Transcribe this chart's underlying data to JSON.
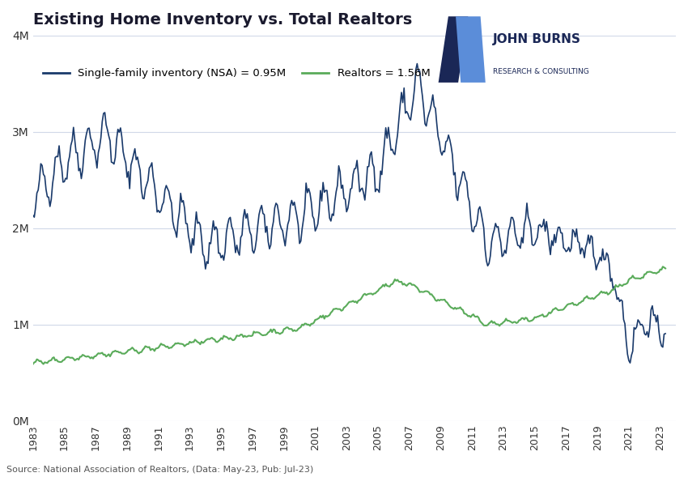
{
  "title": "Existing Home Inventory vs. Total Realtors",
  "source_text": "Source: National Association of Realtors, (Data: May-23, Pub: Jul-23)",
  "legend_inventory": "Single-family inventory (NSA) = 0.95M",
  "legend_realtors": "Realtors = 1.56M",
  "inventory_color": "#1a3a6b",
  "realtors_color": "#5aab5a",
  "background_color": "#ffffff",
  "grid_color": "#d0d8e8",
  "ylim": [
    0,
    4000000
  ],
  "yticks": [
    0,
    1000000,
    2000000,
    3000000,
    4000000
  ],
  "ytick_labels": [
    "0M",
    "1M",
    "2M",
    "3M",
    "4M"
  ],
  "title_color": "#1a1a2e",
  "jb_logo_color_dark": "#1a2756",
  "jb_logo_color_light": "#5b8dd9"
}
